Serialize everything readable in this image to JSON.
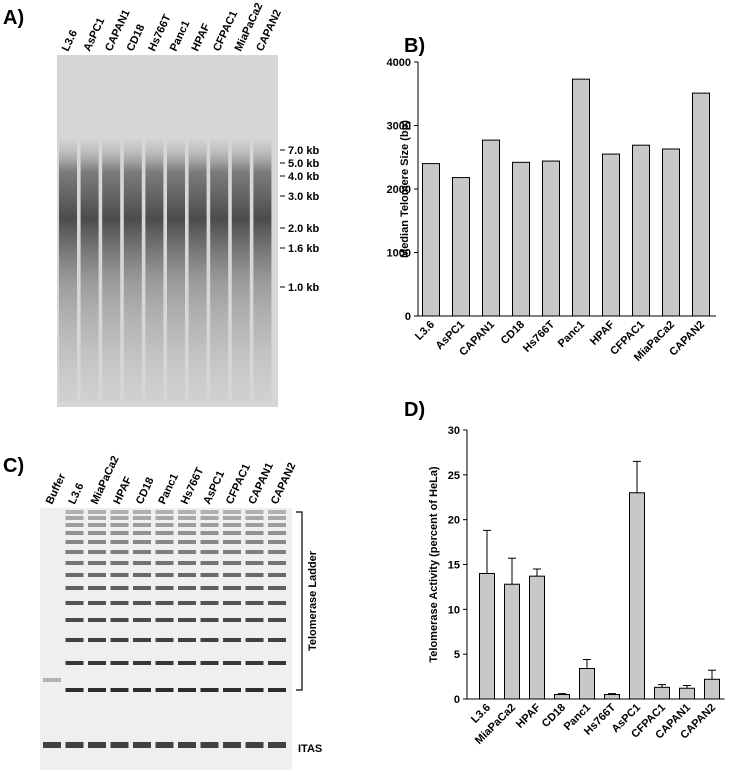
{
  "panels": {
    "a": "A)",
    "b": "B)",
    "c": "C)",
    "d": "D)"
  },
  "gel_a": {
    "lanes": [
      "L3.6",
      "AsPC1",
      "CAPAN1",
      "CD18",
      "Hs766T",
      "Panc1",
      "HPAF",
      "CFPAC1",
      "MiaPaCa2",
      "CAPAN2"
    ],
    "markers": [
      "7.0 kb",
      "5.0 kb",
      "4.0 kb",
      "3.0 kb",
      "2.0 kb",
      "1.6 kb",
      "1.0 kb"
    ]
  },
  "gel_c": {
    "lanes": [
      "Buffer",
      "L3.6",
      "MiaPaCa2",
      "HPAF",
      "CD18",
      "Panc1",
      "Hs766T",
      "AsPC1",
      "CFPAC1",
      "CAPAN1",
      "CAPAN2"
    ],
    "ladder_label": "Telomerase Ladder",
    "itas_label": "ITAS"
  },
  "chart_data": [
    {
      "type": "bar",
      "y_label": "Median Telomere Size (bp)",
      "categories": [
        "L3.6",
        "AsPC1",
        "CAPAN1",
        "CD18",
        "Hs766T",
        "Panc1",
        "HPAF",
        "CFPAC1",
        "MiaPaCa2",
        "CAPAN2"
      ],
      "values": [
        2400,
        2180,
        2770,
        2420,
        2440,
        3730,
        2550,
        2690,
        2630,
        3510
      ],
      "color": "#c8c8c8",
      "ylim": [
        0,
        4000
      ],
      "yticks": [
        0,
        1000,
        2000,
        3000,
        4000
      ]
    },
    {
      "type": "bar",
      "y_label": "Telomerase Activity (percent of HeLa)",
      "categories": [
        "L3.6",
        "MiaPaCa2",
        "HPAF",
        "CD18",
        "Panc1",
        "Hs766T",
        "AsPC1",
        "CFPAC1",
        "CAPAN1",
        "CAPAN2"
      ],
      "values": [
        14.0,
        12.8,
        13.7,
        0.5,
        3.4,
        0.5,
        23.0,
        1.3,
        1.2,
        2.2
      ],
      "errors": [
        4.8,
        2.9,
        0.8,
        0.1,
        1.0,
        0.1,
        3.5,
        0.3,
        0.3,
        1.0
      ],
      "color": "#c8c8c8",
      "ylim": [
        0,
        30
      ],
      "yticks": [
        0,
        5,
        10,
        15,
        20,
        25,
        30
      ]
    }
  ]
}
